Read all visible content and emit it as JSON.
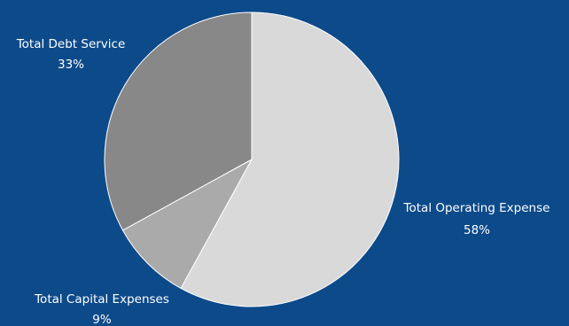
{
  "chart_data": {
    "type": "pie",
    "slices": [
      {
        "label": "Total Operating Expense",
        "value": 58,
        "display": "58%",
        "color": "#d9d9d9"
      },
      {
        "label": "Total Capital Expenses",
        "value": 9,
        "display": "9%",
        "color": "#aaaaaa"
      },
      {
        "label": "Total Debt Service",
        "value": 33,
        "display": "33%",
        "color": "#888888"
      }
    ],
    "title": "",
    "legend": "none",
    "background": "#0d4a8a",
    "label_color": "#ffffff"
  }
}
